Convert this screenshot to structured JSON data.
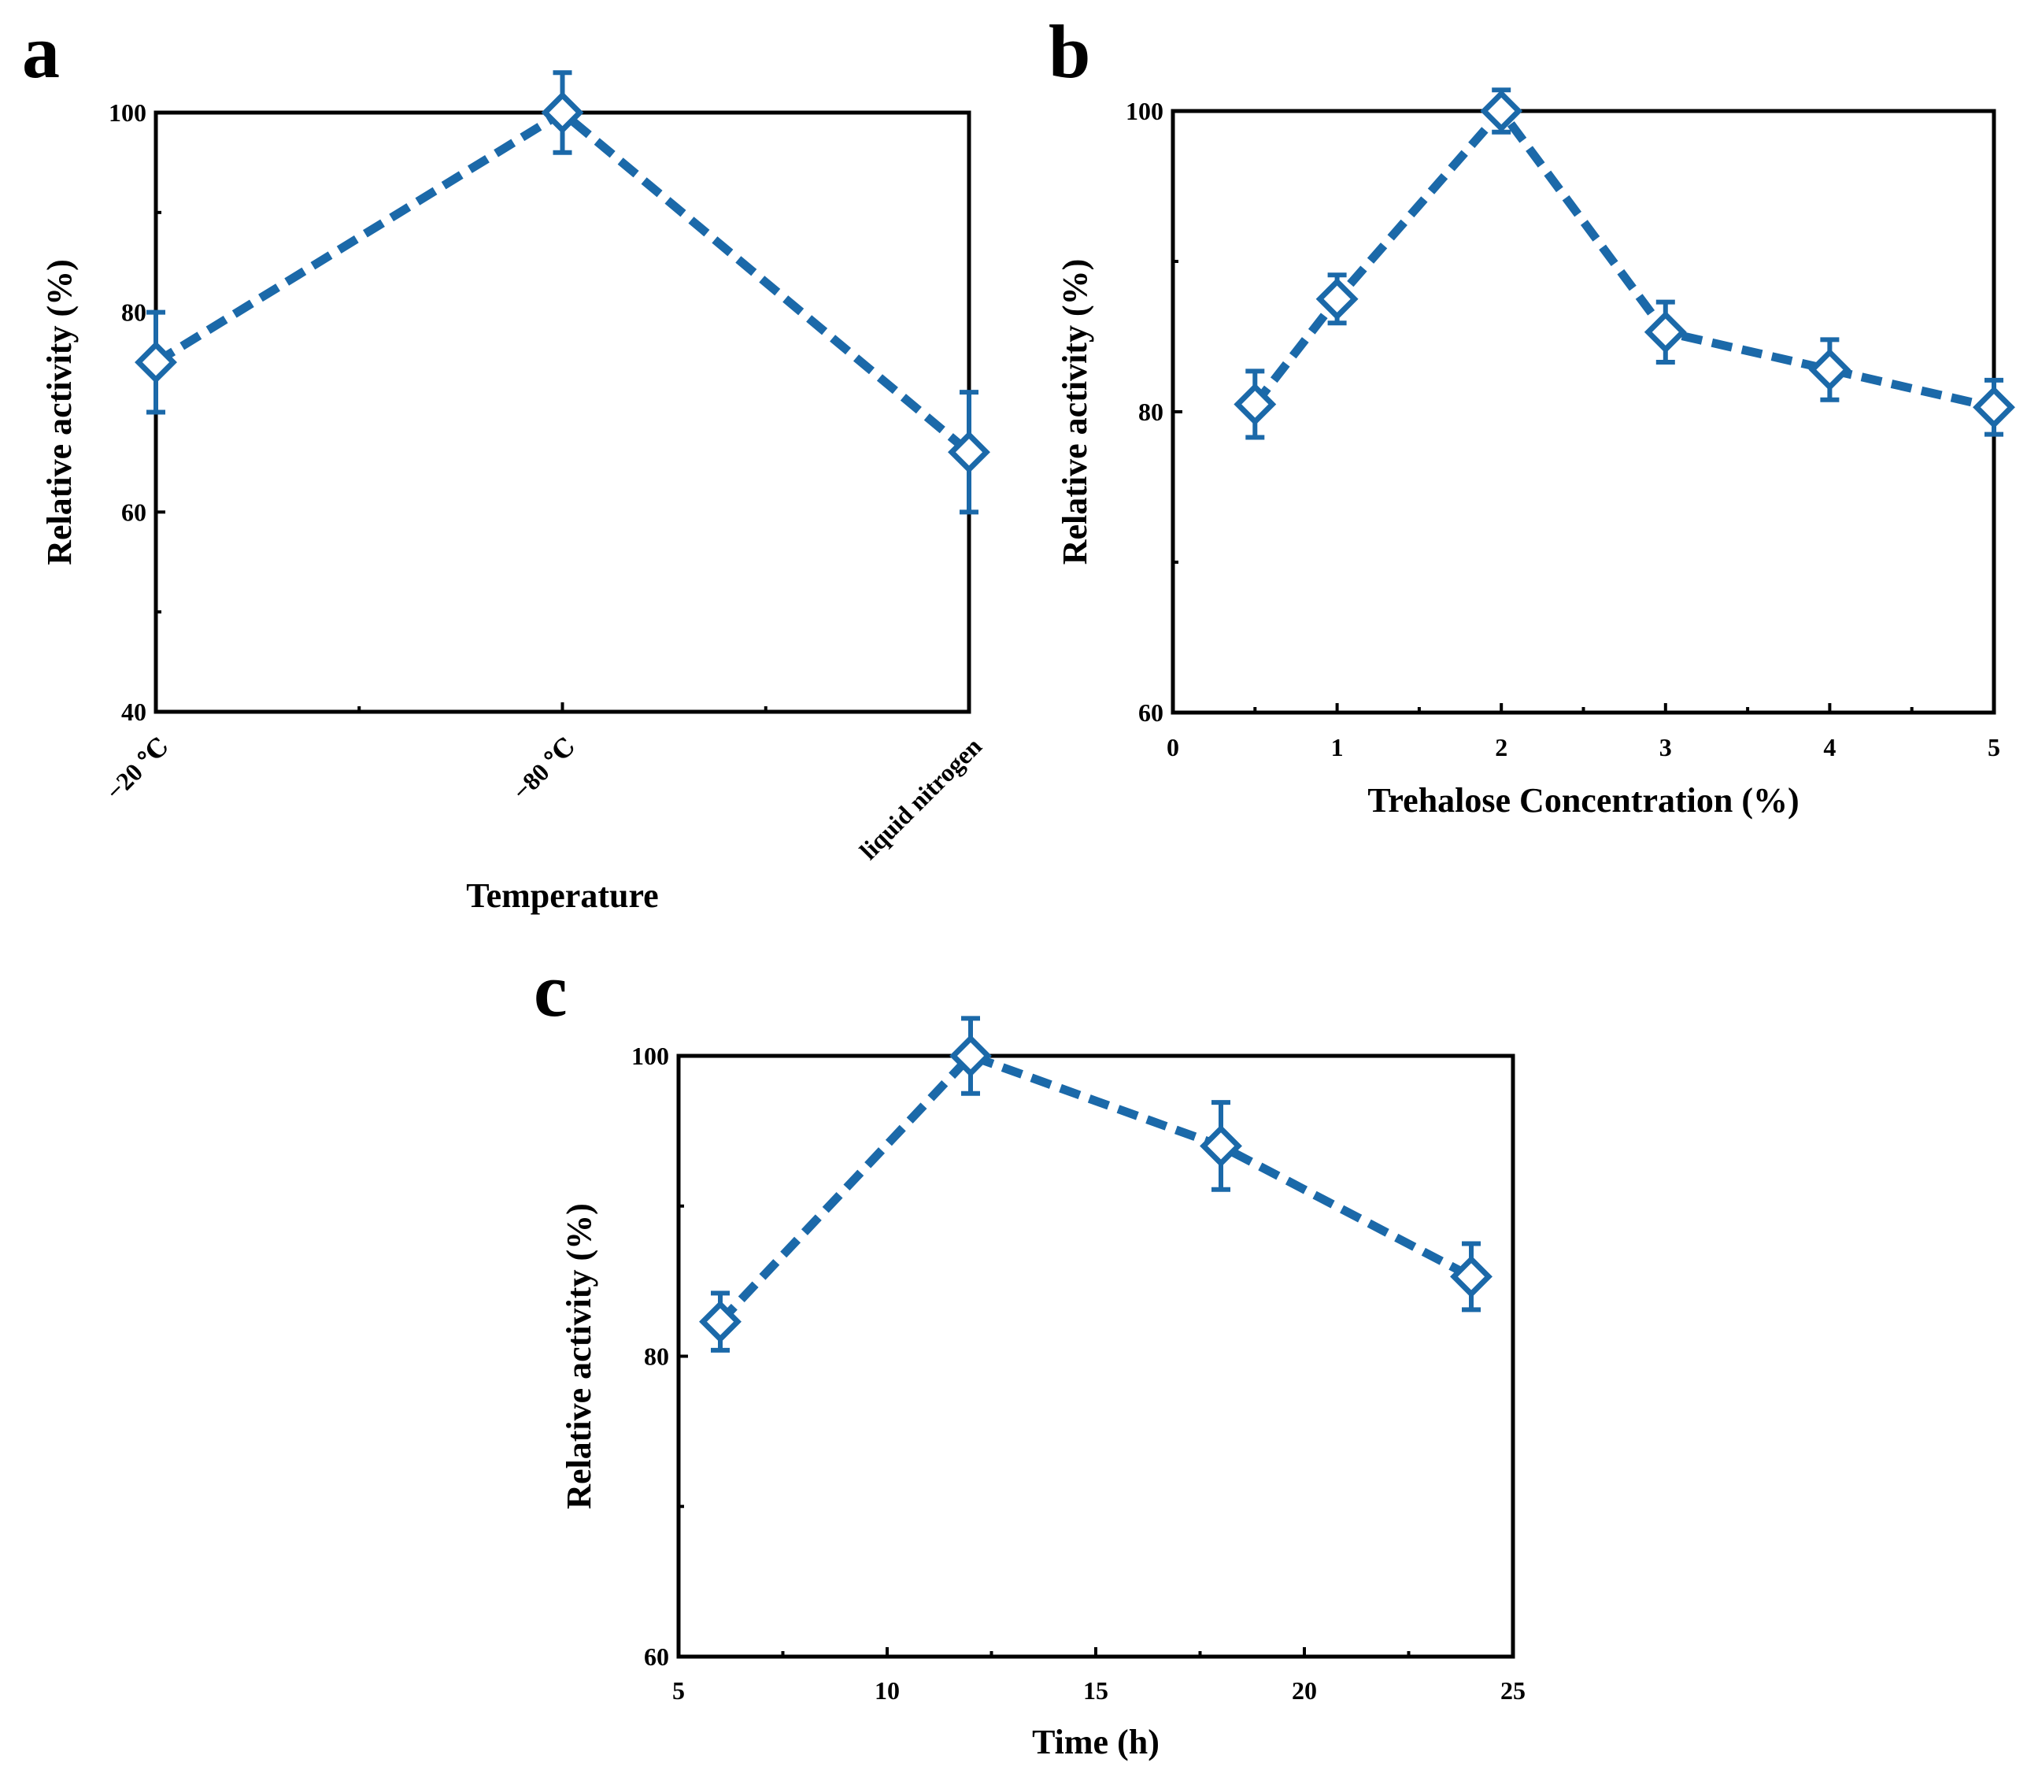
{
  "style": {
    "series_color": "#1b69a9",
    "axis_color": "#000000",
    "background": "#ffffff"
  },
  "chart_data": [
    {
      "panel": "a",
      "type": "line",
      "title": "",
      "categories": [
        "−20 ℃",
        "−80 ℃",
        "liquid nitrogen"
      ],
      "series": [
        {
          "name": "Relative activity",
          "values": [
            75,
            100,
            66
          ],
          "errors": [
            5,
            4,
            6
          ],
          "marker": "open-diamond",
          "line": "dashed"
        }
      ],
      "xlabel": "Temperature",
      "ylabel": "Relative activity (%)",
      "ylim": [
        40,
        100
      ],
      "yticks": [
        40,
        60,
        80,
        100
      ],
      "yticklabels": [
        "40",
        "60",
        "80",
        "100"
      ],
      "grid": false,
      "legend": "none"
    },
    {
      "panel": "b",
      "type": "line",
      "title": "",
      "series": [
        {
          "name": "Relative activity",
          "x": [
            0.5,
            1,
            2,
            3,
            4,
            5
          ],
          "values": [
            80.5,
            87.5,
            100,
            85.3,
            82.8,
            80.3
          ],
          "errors": [
            2.2,
            1.6,
            1.4,
            2.0,
            2.0,
            1.8
          ],
          "marker": "open-diamond",
          "line": "dashed"
        }
      ],
      "xlabel": "Trehalose Concentration (%)",
      "ylabel": "Relative activity (%)",
      "xlim": [
        0,
        5
      ],
      "ylim": [
        60,
        100
      ],
      "xticks": [
        0,
        1,
        2,
        3,
        4,
        5
      ],
      "xticklabels": [
        "0",
        "1",
        "2",
        "3",
        "4",
        "5"
      ],
      "yticks": [
        60,
        80,
        100
      ],
      "yticklabels": [
        "60",
        "80",
        "100"
      ],
      "grid": false,
      "legend": "none"
    },
    {
      "panel": "c",
      "type": "line",
      "title": "",
      "series": [
        {
          "name": "Relative activity",
          "x": [
            6,
            12,
            18,
            24
          ],
          "values": [
            82.3,
            100,
            94,
            85.3
          ],
          "errors": [
            1.9,
            2.5,
            2.9,
            2.2
          ],
          "marker": "open-diamond",
          "line": "dashed"
        }
      ],
      "xlabel": "Time (h)",
      "ylabel": "Relative activity (%)",
      "xlim": [
        5,
        25
      ],
      "ylim": [
        60,
        100
      ],
      "xticks": [
        5,
        10,
        15,
        20,
        25
      ],
      "xticklabels": [
        "5",
        "10",
        "15",
        "20",
        "25"
      ],
      "yticks": [
        60,
        80,
        100
      ],
      "yticklabels": [
        "60",
        "80",
        "100"
      ],
      "grid": false,
      "legend": "none"
    }
  ]
}
